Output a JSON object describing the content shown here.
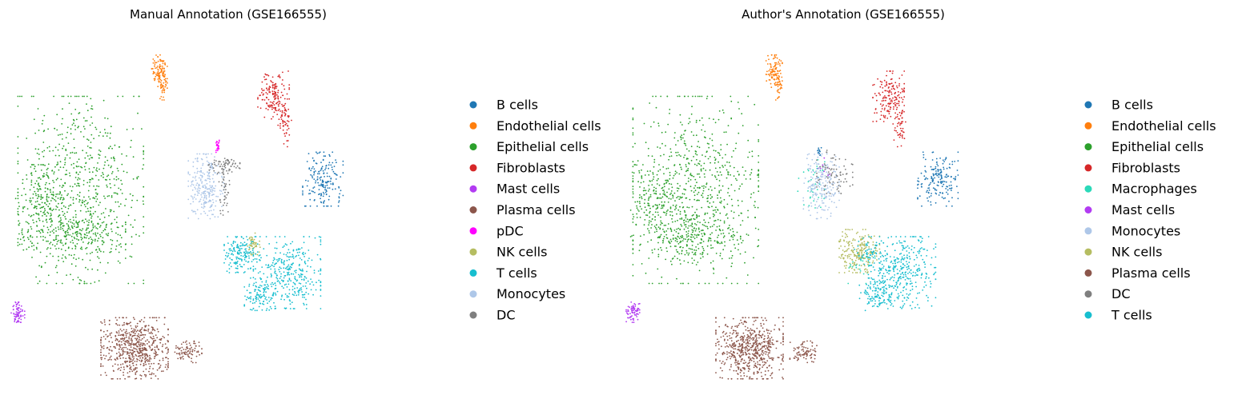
{
  "chart_data": [
    {
      "type": "scatter",
      "title": "Manual Annotation (GSE166555)",
      "xlabel": "",
      "ylabel": "",
      "axes": "off",
      "grid": false,
      "legend_position": "right",
      "series": [
        {
          "name": "B cells",
          "color": "#1f77b4",
          "clusters": [
            {
              "cx": 0.72,
              "cy": 0.42,
              "rx": 0.045,
              "ry": 0.075,
              "n": 180
            }
          ]
        },
        {
          "name": "Endothelial cells",
          "color": "#ff7f0e",
          "clusters": [
            {
              "cx": 0.355,
              "cy": 0.12,
              "rx": 0.018,
              "ry": 0.045,
              "n": 100
            },
            {
              "cx": 0.365,
              "cy": 0.16,
              "rx": 0.008,
              "ry": 0.04,
              "n": 35
            }
          ]
        },
        {
          "name": "Epithelial cells",
          "color": "#2ca02c",
          "clusters": [
            {
              "cx": 0.18,
              "cy": 0.45,
              "rx": 0.14,
              "ry": 0.26,
              "n": 700
            },
            {
              "cx": 0.09,
              "cy": 0.48,
              "rx": 0.055,
              "ry": 0.1,
              "n": 140
            },
            {
              "cx": 0.16,
              "cy": 0.58,
              "rx": 0.12,
              "ry": 0.06,
              "n": 200
            }
          ]
        },
        {
          "name": "Fibroblasts",
          "color": "#d62728",
          "clusters": [
            {
              "cx": 0.61,
              "cy": 0.19,
              "rx": 0.035,
              "ry": 0.07,
              "n": 160
            },
            {
              "cx": 0.635,
              "cy": 0.27,
              "rx": 0.015,
              "ry": 0.06,
              "n": 50
            }
          ]
        },
        {
          "name": "Mast cells",
          "color": "#b23bf2",
          "clusters": [
            {
              "cx": 0.04,
              "cy": 0.79,
              "rx": 0.015,
              "ry": 0.028,
              "n": 70
            }
          ]
        },
        {
          "name": "Plasma cells",
          "color": "#8c564b",
          "clusters": [
            {
              "cx": 0.3,
              "cy": 0.89,
              "rx": 0.075,
              "ry": 0.085,
              "n": 600
            },
            {
              "cx": 0.42,
              "cy": 0.9,
              "rx": 0.03,
              "ry": 0.03,
              "n": 80
            }
          ]
        },
        {
          "name": "pDC",
          "color": "#ff00ff",
          "clusters": [
            {
              "cx": 0.485,
              "cy": 0.33,
              "rx": 0.004,
              "ry": 0.018,
              "n": 25
            }
          ]
        },
        {
          "name": "NK cells",
          "color": "#b5bd61",
          "clusters": [
            {
              "cx": 0.565,
              "cy": 0.6,
              "rx": 0.015,
              "ry": 0.03,
              "n": 50
            }
          ]
        },
        {
          "name": "T cells",
          "color": "#17becf",
          "clusters": [
            {
              "cx": 0.54,
              "cy": 0.63,
              "rx": 0.04,
              "ry": 0.05,
              "n": 160
            },
            {
              "cx": 0.64,
              "cy": 0.68,
              "rx": 0.075,
              "ry": 0.1,
              "n": 350
            },
            {
              "cx": 0.58,
              "cy": 0.74,
              "rx": 0.035,
              "ry": 0.045,
              "n": 90
            }
          ]
        },
        {
          "name": "Monocytes",
          "color": "#aec7e8",
          "clusters": [
            {
              "cx": 0.46,
              "cy": 0.44,
              "rx": 0.04,
              "ry": 0.09,
              "n": 250
            }
          ]
        },
        {
          "name": "DC",
          "color": "#7f7f7f",
          "clusters": [
            {
              "cx": 0.5,
              "cy": 0.38,
              "rx": 0.035,
              "ry": 0.025,
              "n": 70
            },
            {
              "cx": 0.5,
              "cy": 0.46,
              "rx": 0.012,
              "ry": 0.06,
              "n": 40
            }
          ]
        }
      ]
    },
    {
      "type": "scatter",
      "title": "Author's Annotation (GSE166555)",
      "xlabel": "",
      "ylabel": "",
      "axes": "off",
      "grid": false,
      "legend_position": "right",
      "series": [
        {
          "name": "B cells",
          "color": "#1f77b4",
          "clusters": [
            {
              "cx": 0.72,
              "cy": 0.42,
              "rx": 0.045,
              "ry": 0.075,
              "n": 180
            },
            {
              "cx": 0.455,
              "cy": 0.34,
              "rx": 0.005,
              "ry": 0.015,
              "n": 12
            }
          ]
        },
        {
          "name": "Endothelial cells",
          "color": "#ff7f0e",
          "clusters": [
            {
              "cx": 0.355,
              "cy": 0.12,
              "rx": 0.018,
              "ry": 0.045,
              "n": 100
            },
            {
              "cx": 0.365,
              "cy": 0.16,
              "rx": 0.008,
              "ry": 0.04,
              "n": 35
            }
          ]
        },
        {
          "name": "Epithelial cells",
          "color": "#2ca02c",
          "clusters": [
            {
              "cx": 0.18,
              "cy": 0.45,
              "rx": 0.14,
              "ry": 0.26,
              "n": 700
            },
            {
              "cx": 0.09,
              "cy": 0.48,
              "rx": 0.055,
              "ry": 0.1,
              "n": 140
            },
            {
              "cx": 0.16,
              "cy": 0.58,
              "rx": 0.12,
              "ry": 0.06,
              "n": 200
            }
          ]
        },
        {
          "name": "Fibroblasts",
          "color": "#d62728",
          "clusters": [
            {
              "cx": 0.61,
              "cy": 0.19,
              "rx": 0.035,
              "ry": 0.07,
              "n": 160
            },
            {
              "cx": 0.635,
              "cy": 0.27,
              "rx": 0.015,
              "ry": 0.06,
              "n": 50
            }
          ]
        },
        {
          "name": "Macrophages",
          "color": "#2bd9b9",
          "clusters": [
            {
              "cx": 0.44,
              "cy": 0.43,
              "rx": 0.035,
              "ry": 0.07,
              "n": 40
            },
            {
              "cx": 0.55,
              "cy": 0.66,
              "rx": 0.03,
              "ry": 0.05,
              "n": 25
            }
          ]
        },
        {
          "name": "Mast cells",
          "color": "#b23bf2",
          "clusters": [
            {
              "cx": 0.04,
              "cy": 0.79,
              "rx": 0.015,
              "ry": 0.028,
              "n": 70
            },
            {
              "cx": 0.47,
              "cy": 0.4,
              "rx": 0.02,
              "ry": 0.04,
              "n": 10
            }
          ]
        },
        {
          "name": "Monocytes",
          "color": "#aec7e8",
          "clusters": [
            {
              "cx": 0.46,
              "cy": 0.44,
              "rx": 0.04,
              "ry": 0.09,
              "n": 200
            }
          ]
        },
        {
          "name": "NK cells",
          "color": "#b5bd61",
          "clusters": [
            {
              "cx": 0.545,
              "cy": 0.62,
              "rx": 0.045,
              "ry": 0.06,
              "n": 220
            }
          ]
        },
        {
          "name": "Plasma cells",
          "color": "#8c564b",
          "clusters": [
            {
              "cx": 0.3,
              "cy": 0.89,
              "rx": 0.075,
              "ry": 0.085,
              "n": 600
            },
            {
              "cx": 0.42,
              "cy": 0.9,
              "rx": 0.03,
              "ry": 0.03,
              "n": 80
            }
          ]
        },
        {
          "name": "DC",
          "color": "#7f7f7f",
          "clusters": [
            {
              "cx": 0.49,
              "cy": 0.4,
              "rx": 0.04,
              "ry": 0.06,
              "n": 80
            }
          ]
        },
        {
          "name": "T cells",
          "color": "#17becf",
          "clusters": [
            {
              "cx": 0.64,
              "cy": 0.68,
              "rx": 0.075,
              "ry": 0.1,
              "n": 380
            },
            {
              "cx": 0.58,
              "cy": 0.74,
              "rx": 0.035,
              "ry": 0.045,
              "n": 100
            },
            {
              "cx": 0.56,
              "cy": 0.62,
              "rx": 0.03,
              "ry": 0.04,
              "n": 50
            }
          ]
        }
      ]
    }
  ]
}
